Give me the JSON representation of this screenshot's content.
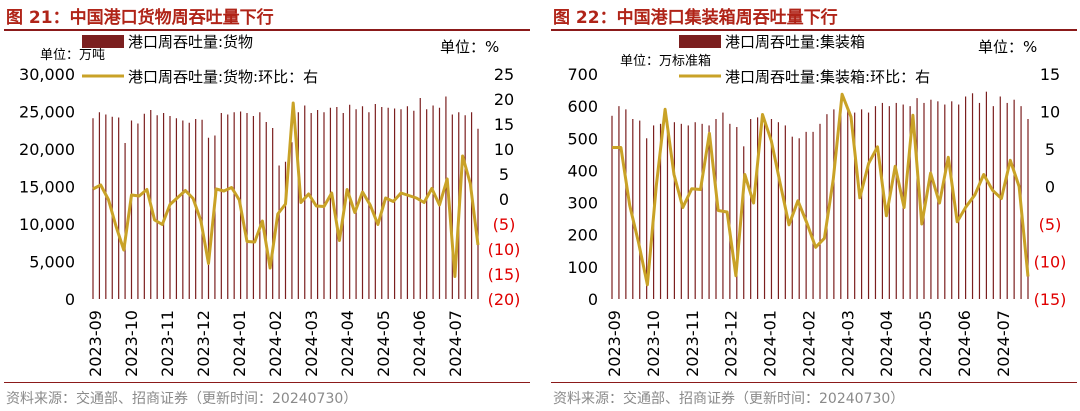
{
  "left": {
    "title": "图 21：中国港口货物周吞吐量下行",
    "source": "资料来源：交通部、招商证券（更新时间：20240730）"
  },
  "right": {
    "title": "图 22：中国港口集装箱周吞吐量下行",
    "source": "资料来源：交通部、招商证券（更新时间：20240730）"
  },
  "chart_data": [
    {
      "type": "bar",
      "unit_left": "单位：万吨",
      "unit_right": "单位：%",
      "right_axis_side": "右",
      "legend": [
        "港口周吞吐量:货物",
        "港口周吞吐量:货物:环比：右"
      ],
      "x_ticks": [
        "2023-09",
        "2023-10",
        "2023-11",
        "2023-12",
        "2024-01",
        "2024-02",
        "2024-03",
        "2024-04",
        "2024-05",
        "2024-06",
        "2024-07"
      ],
      "ylim": [
        0,
        30000
      ],
      "yticks": [
        "0",
        "5,000",
        "10,000",
        "15,000",
        "20,000",
        "25,000",
        "30,000"
      ],
      "y2lim": [
        -20,
        25
      ],
      "y2ticks": [
        "(20)",
        "(15)",
        "(10)",
        "(5)",
        "0",
        "5",
        "10",
        "15",
        "20",
        "25"
      ],
      "series": [
        {
          "name": "港口周吞吐量:货物",
          "kind": "bar",
          "color": "#7b1f1f",
          "values": [
            24100,
            24900,
            24600,
            24300,
            24200,
            20800,
            23800,
            23400,
            24700,
            25200,
            24500,
            24800,
            24400,
            24100,
            23800,
            23500,
            24000,
            23900,
            21500,
            21800,
            24800,
            24600,
            24900,
            25000,
            24800,
            24400,
            24900,
            23600,
            22800,
            17800,
            18300,
            20900,
            24900,
            25800,
            24800,
            25200,
            24900,
            25500,
            25600,
            24800,
            25900,
            25300,
            25700,
            24900,
            26000,
            25600,
            25500,
            25400,
            25300,
            25700,
            25100,
            26800,
            25300,
            25800,
            25500,
            27000,
            24600,
            24900,
            24500,
            24900,
            22700
          ]
        },
        {
          "name": "港口周吞吐量:货物:环比：右",
          "kind": "line",
          "color": "#c9a227",
          "values": [
            2.0,
            2.8,
            -0.1,
            -5.5,
            -10.2,
            0.8,
            0.6,
            1.9,
            -4.2,
            -5.1,
            -1.1,
            0.3,
            1.7,
            0.1,
            -4.3,
            -12.9,
            2.0,
            1.6,
            2.3,
            -0.2,
            -8.5,
            -8.6,
            -4.4,
            -13.8,
            -3.0,
            -1.0,
            19.2,
            -0.7,
            1.0,
            -1.4,
            -1.5,
            1.2,
            -8.3,
            1.9,
            -2.7,
            1.4,
            -1.2,
            -5.1,
            0.2,
            -0.5,
            1.2,
            0.7,
            0.2,
            -0.7,
            2.1,
            -1.2,
            4.0,
            -15.5,
            8.6,
            3.1,
            -9.2
          ]
        }
      ]
    },
    {
      "type": "bar",
      "unit_left": "单位：万标准箱",
      "unit_right": "单位：%",
      "right_axis_side": "右",
      "legend": [
        "港口周吞吐量:集装箱",
        "港口周吞吐量:集装箱:环比：右"
      ],
      "x_ticks": [
        "2023-09",
        "2023-10",
        "2023-11",
        "2023-12",
        "2024-01",
        "2024-02",
        "2024-03",
        "2024-04",
        "2024-05",
        "2024-06",
        "2024-07"
      ],
      "ylim": [
        0,
        700
      ],
      "yticks": [
        "0",
        "100",
        "200",
        "300",
        "400",
        "500",
        "600",
        "700"
      ],
      "y2lim": [
        -15,
        15
      ],
      "y2ticks": [
        "(15)",
        "(10)",
        "(5)",
        "0",
        "5",
        "10",
        "15"
      ],
      "series": [
        {
          "name": "港口周吞吐量:集装箱",
          "kind": "bar",
          "color": "#7b1f1f",
          "values": [
            570,
            600,
            590,
            560,
            555,
            500,
            540,
            545,
            555,
            550,
            545,
            540,
            550,
            545,
            540,
            560,
            580,
            545,
            535,
            475,
            560,
            565,
            550,
            560,
            550,
            540,
            505,
            500,
            520,
            520,
            545,
            575,
            590,
            600,
            590,
            580,
            590,
            580,
            600,
            610,
            600,
            610,
            605,
            600,
            625,
            610,
            620,
            615,
            605,
            615,
            605,
            630,
            640,
            610,
            645,
            600,
            630,
            610,
            620,
            600,
            560
          ]
        },
        {
          "name": "港口周吞吐量:集装箱:环比：右",
          "kind": "line",
          "color": "#c9a227",
          "values": [
            5.2,
            5.2,
            -2.5,
            -7.5,
            -13.1,
            0.1,
            10.3,
            1.6,
            -2.8,
            -0.3,
            -0.4,
            7.1,
            -3.2,
            -3.4,
            -11.9,
            1.6,
            -2.2,
            9.6,
            6.1,
            0.4,
            -5.1,
            -1.9,
            -4.8,
            -8.1,
            -6.9,
            1.0,
            12.3,
            9.3,
            -1.5,
            3.1,
            5.3,
            -3.9,
            2.7,
            -2.8,
            9.5,
            -5.0,
            1.8,
            -2.2,
            3.9,
            -4.7,
            -2.7,
            -1.1,
            1.6,
            -0.5,
            -1.6,
            3.5,
            0.0,
            -12.0
          ]
        }
      ]
    }
  ]
}
